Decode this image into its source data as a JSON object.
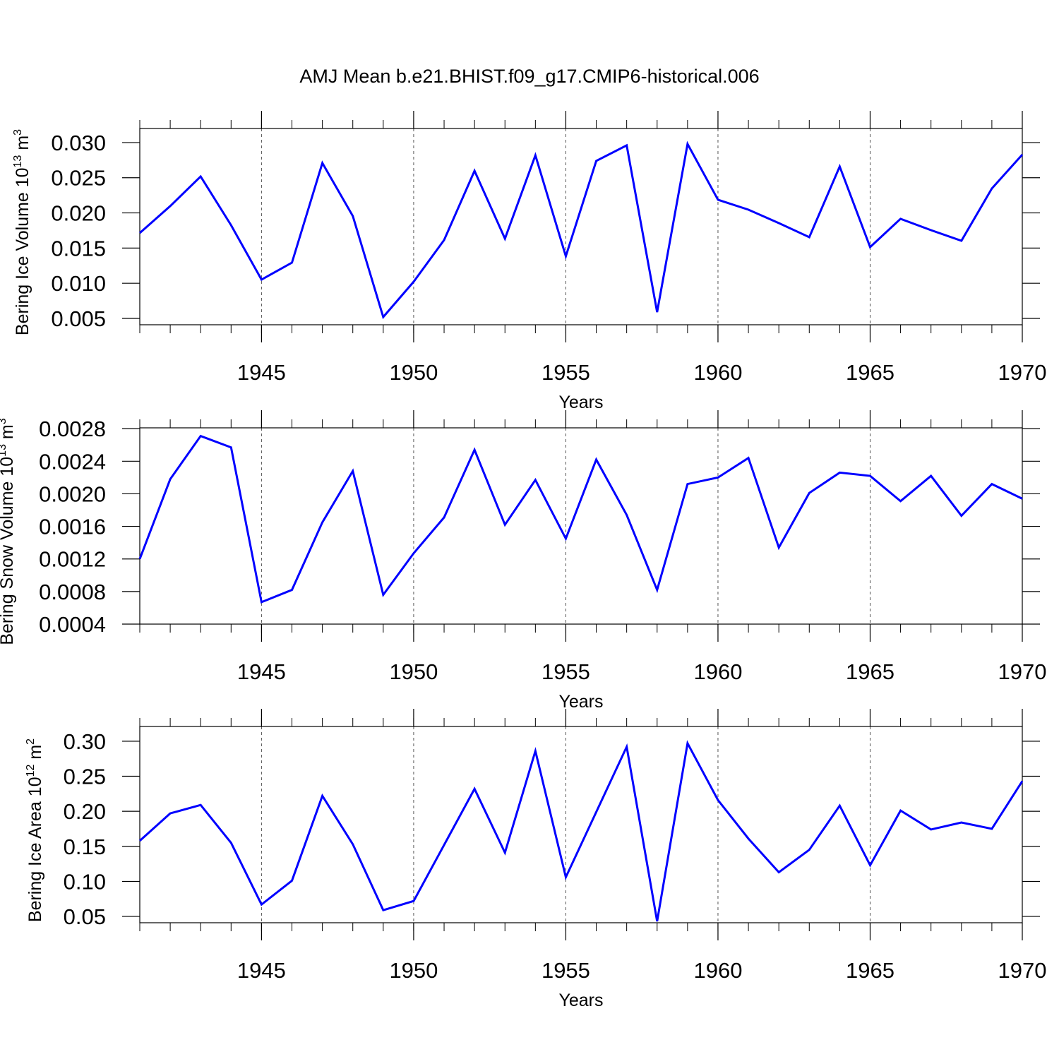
{
  "chart_data": [
    {
      "type": "line",
      "title": "AMJ Mean b.e21.BHIST.f09_g17.CMIP6-historical.006",
      "xlabel": "Years",
      "ylabel": [
        "Bering Ice Volume 10",
        "13",
        " m",
        "3"
      ],
      "x": [
        1941,
        1942,
        1943,
        1944,
        1945,
        1946,
        1947,
        1948,
        1949,
        1950,
        1951,
        1952,
        1953,
        1954,
        1955,
        1956,
        1957,
        1958,
        1959,
        1960,
        1961,
        1962,
        1963,
        1964,
        1965,
        1966,
        1967,
        1968,
        1969,
        1970
      ],
      "values": [
        0.01715,
        0.02097,
        0.02518,
        0.01825,
        0.01052,
        0.01293,
        0.02709,
        0.01956,
        0.0052,
        0.01022,
        0.01614,
        0.02598,
        0.01634,
        0.02819,
        0.01384,
        0.02739,
        0.0296,
        0.0059,
        0.0298,
        0.02187,
        0.02046,
        0.01855,
        0.01655,
        0.02659,
        0.01514,
        0.01916,
        0.01755,
        0.01604,
        0.02347,
        0.02829
      ],
      "color": "#0000ff",
      "xlim": [
        1941,
        1970
      ],
      "xticks": [
        1945,
        1950,
        1955,
        1960,
        1965,
        1970
      ],
      "ylim": [
        0.0041,
        0.032
      ],
      "yticks": [
        0.005,
        {
          "value": 0.01,
          "label": "0.010"
        },
        0.015,
        {
          "value": 0.02,
          "label": "0.020"
        },
        0.025,
        {
          "value": 0.03,
          "label": "0.030"
        }
      ],
      "grid": true
    },
    {
      "type": "line",
      "xlabel": "Years",
      "ylabel": [
        "Bering Snow Volume 10",
        "13",
        " m",
        "3"
      ],
      "x": [
        1941,
        1942,
        1943,
        1944,
        1945,
        1946,
        1947,
        1948,
        1949,
        1950,
        1951,
        1952,
        1953,
        1954,
        1955,
        1956,
        1957,
        1958,
        1959,
        1960,
        1961,
        1962,
        1963,
        1964,
        1965,
        1966,
        1967,
        1968,
        1969,
        1970
      ],
      "values": [
        0.0012,
        0.00218,
        0.00271,
        0.00257,
        0.00067,
        0.00082,
        0.00165,
        0.00228,
        0.00076,
        0.00127,
        0.00171,
        0.00254,
        0.00162,
        0.00217,
        0.00145,
        0.00242,
        0.00174,
        0.00082,
        0.00212,
        0.0022,
        0.00244,
        0.00134,
        0.00201,
        0.00226,
        0.00222,
        0.00191,
        0.00222,
        0.00173,
        0.00212,
        0.00194
      ],
      "color": "#0000ff",
      "xlim": [
        1941,
        1970
      ],
      "xticks": [
        1945,
        1950,
        1955,
        1960,
        1965,
        1970
      ],
      "ylim": [
        0.0004,
        0.00281
      ],
      "yticks": [
        0.0004,
        0.0008,
        0.0012,
        0.0016,
        {
          "value": 0.002,
          "label": "0.0020"
        },
        0.0024,
        0.0028
      ],
      "grid": true
    },
    {
      "type": "line",
      "xlabel": "Years",
      "ylabel": [
        "Bering Ice Area 10",
        "12",
        " m",
        "2"
      ],
      "x": [
        1941,
        1942,
        1943,
        1944,
        1945,
        1946,
        1947,
        1948,
        1949,
        1950,
        1951,
        1952,
        1953,
        1954,
        1955,
        1956,
        1957,
        1958,
        1959,
        1960,
        1961,
        1962,
        1963,
        1964,
        1965,
        1966,
        1967,
        1968,
        1969,
        1970
      ],
      "values": [
        0.158,
        0.197,
        0.209,
        0.155,
        0.067,
        0.101,
        0.222,
        0.153,
        0.059,
        0.072,
        0.152,
        0.232,
        0.141,
        0.286,
        0.106,
        0.199,
        0.292,
        0.043,
        0.297,
        0.216,
        0.161,
        0.113,
        0.145,
        0.208,
        0.123,
        0.201,
        0.174,
        0.184,
        0.175,
        0.243
      ],
      "color": "#0000ff",
      "xlim": [
        1941,
        1970
      ],
      "xticks": [
        1945,
        1950,
        1955,
        1960,
        1965,
        1970
      ],
      "ylim": [
        0.041,
        0.321
      ],
      "yticks": [
        0.05,
        {
          "value": 0.1,
          "label": "0.10"
        },
        0.15,
        {
          "value": 0.2,
          "label": "0.20"
        },
        0.25,
        {
          "value": 0.3,
          "label": "0.30"
        }
      ],
      "grid": true
    }
  ]
}
